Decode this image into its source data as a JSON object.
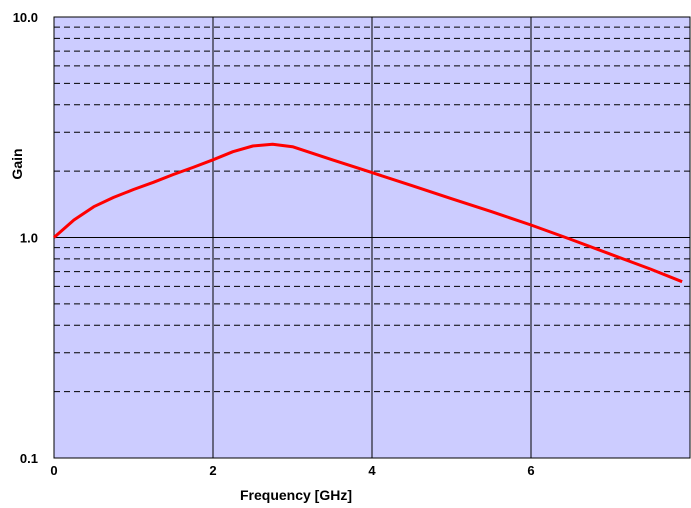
{
  "chart_data": {
    "type": "line",
    "xlabel": "Frequency [GHz]",
    "ylabel": "Gain",
    "xlim": [
      0,
      8
    ],
    "ylim": [
      0.1,
      10.0
    ],
    "y_scale": "log",
    "grid": true,
    "minor_grid_style": "dashed",
    "plot_background": "#ccccff",
    "x_ticks": [
      0,
      2,
      4,
      6,
      8
    ],
    "x_tick_labels": [
      "0",
      "2",
      "4",
      "6",
      ""
    ],
    "y_ticks": [
      0.1,
      1.0,
      10.0
    ],
    "y_tick_labels": [
      "0.1",
      "1.0",
      "10.0"
    ],
    "series": [
      {
        "color": "#ff0000",
        "x": [
          0,
          0.25,
          0.5,
          0.75,
          1.0,
          1.25,
          1.5,
          1.75,
          2.0,
          2.25,
          2.5,
          2.75,
          3.0,
          3.5,
          4.0,
          4.5,
          5.0,
          5.5,
          6.0,
          6.5,
          7.0,
          7.5,
          7.9
        ],
        "y": [
          1.0,
          1.2,
          1.38,
          1.52,
          1.65,
          1.78,
          1.93,
          2.08,
          2.25,
          2.45,
          2.6,
          2.65,
          2.58,
          2.25,
          1.97,
          1.72,
          1.5,
          1.31,
          1.14,
          0.98,
          0.84,
          0.72,
          0.63
        ]
      }
    ]
  }
}
